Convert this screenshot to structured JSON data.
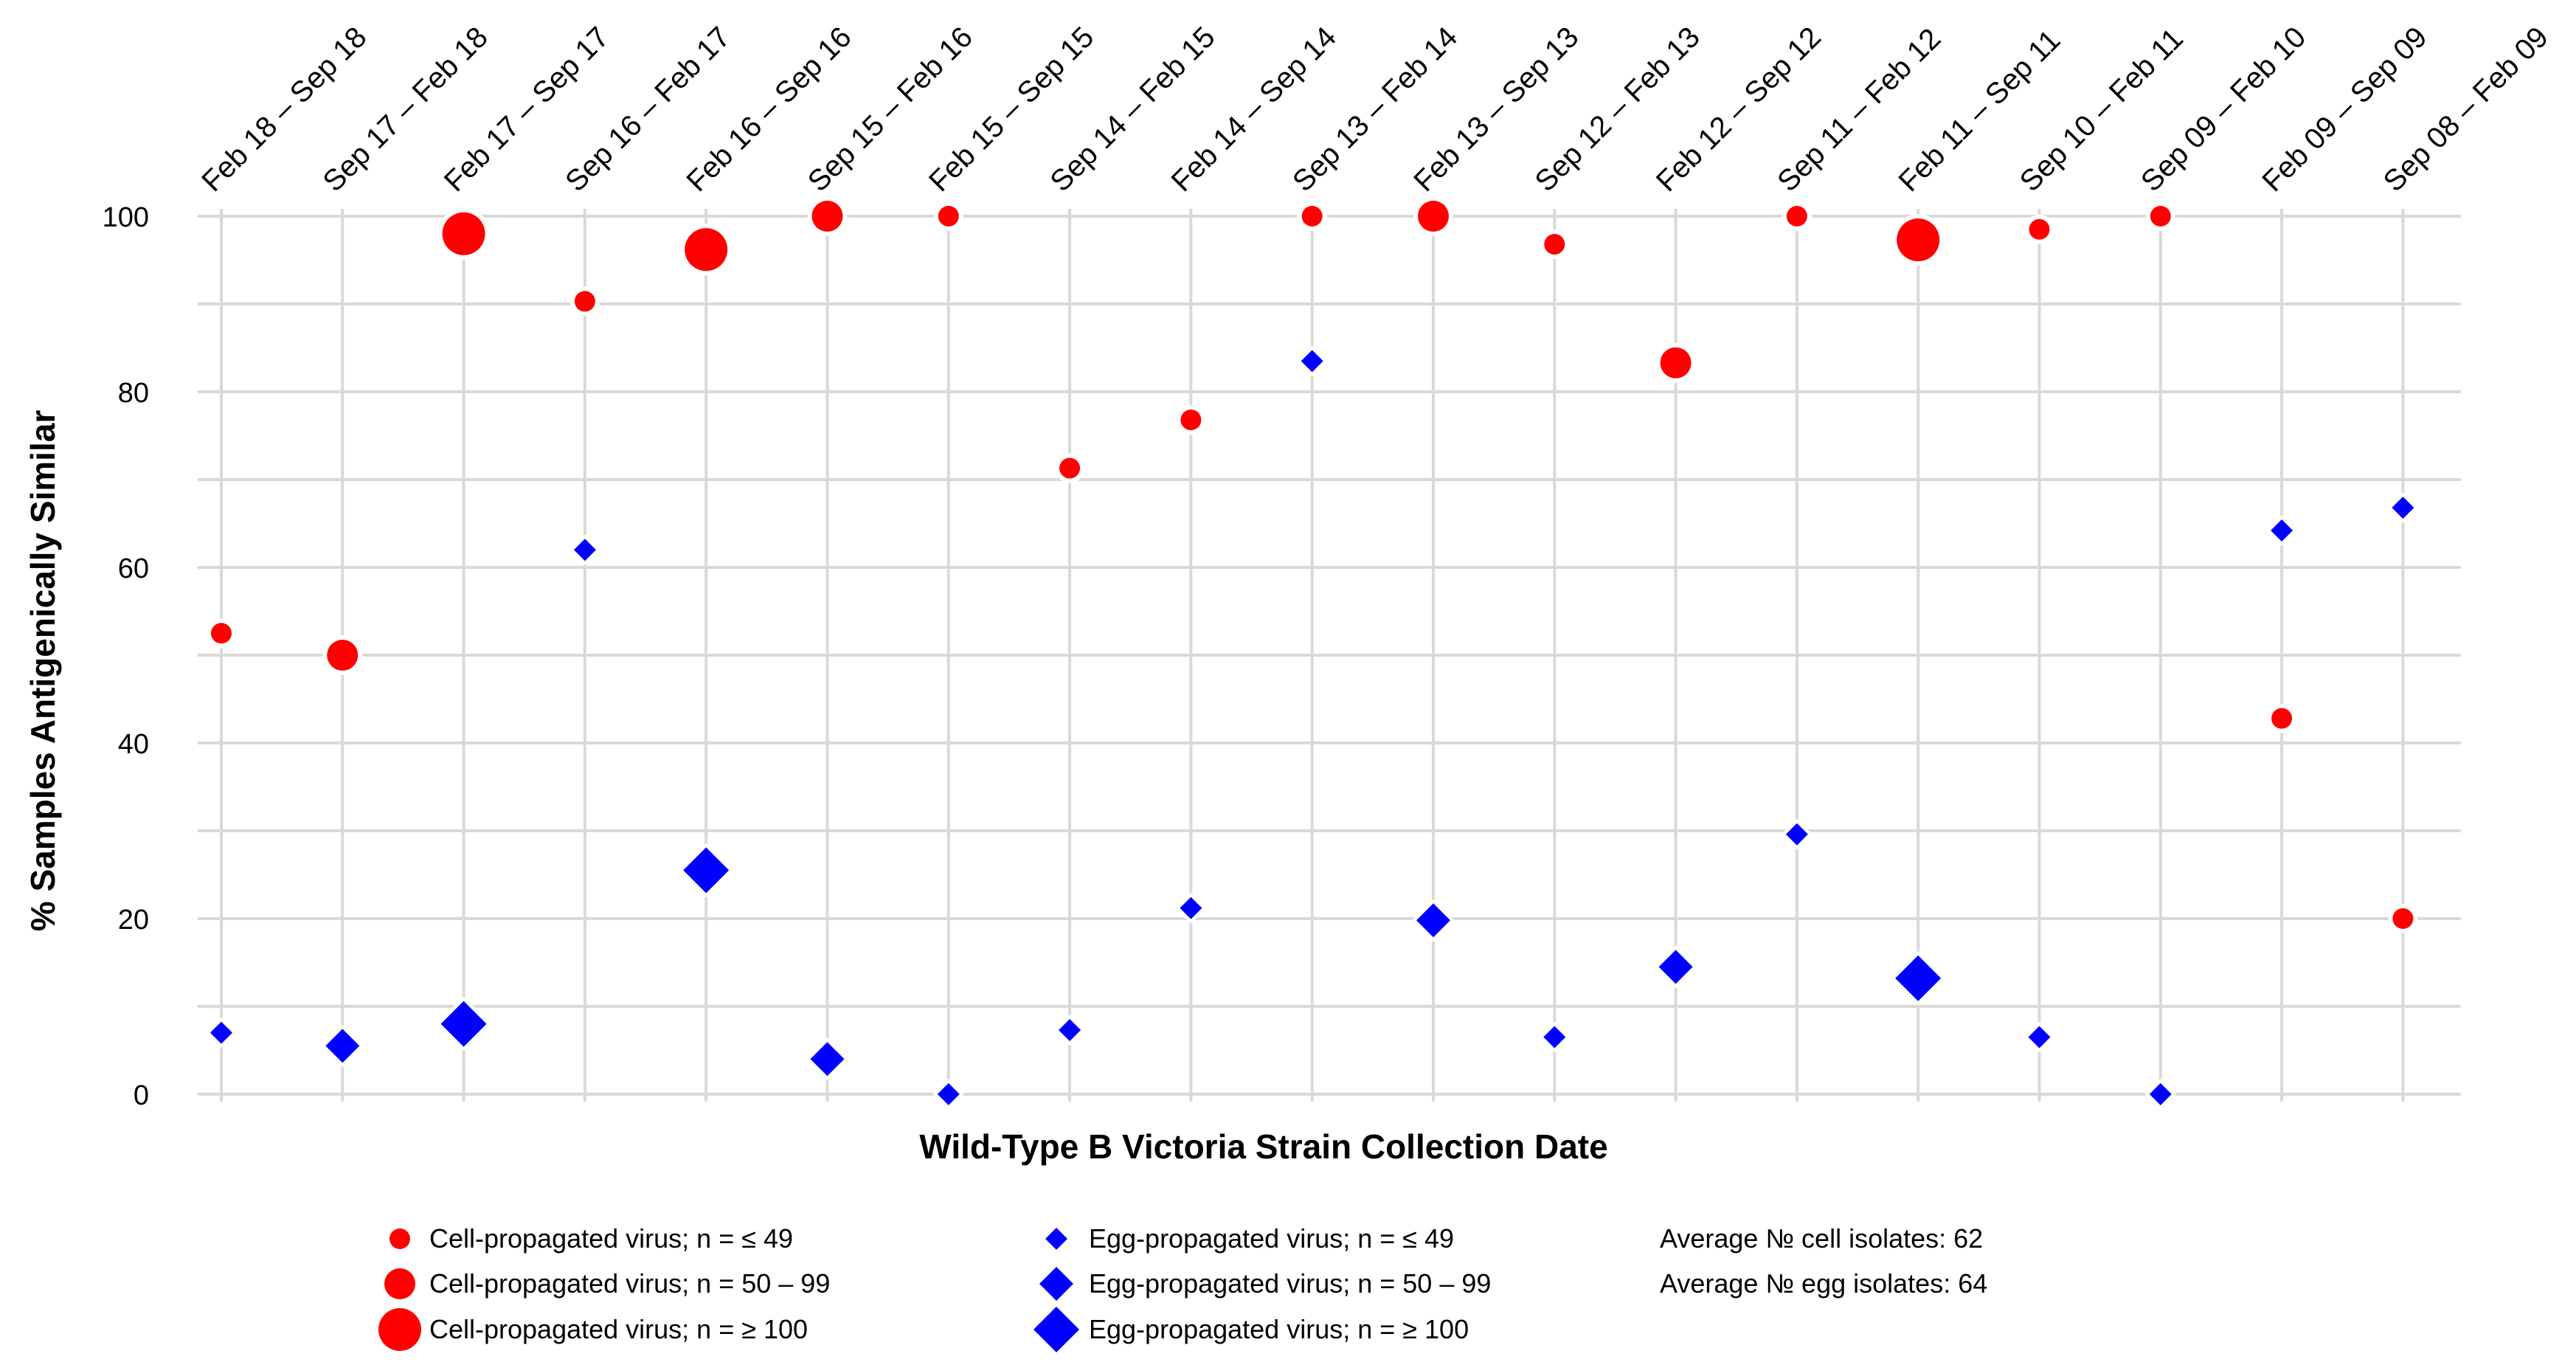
{
  "chart_data": {
    "type": "scatter",
    "title": "",
    "xlabel": "Wild-Type B Victoria Strain Collection Date",
    "ylabel": "% Samples Antigenically Similar",
    "ylim": [
      0,
      100
    ],
    "yticks": [
      0,
      20,
      40,
      60,
      80,
      100
    ],
    "grid": true,
    "categories": [
      "Feb 18 – Sep 18",
      "Sep 17 – Feb 18",
      "Feb 17 – Sep 17",
      "Sep 16 – Feb 17",
      "Feb 16 – Sep 16",
      "Sep 15 – Feb 16",
      "Feb 15 – Sep 15",
      "Sep 14 – Feb 15",
      "Feb 14 – Sep 14",
      "Sep 13 – Feb 14",
      "Feb 13 – Sep 13",
      "Sep 12 – Feb 13",
      "Feb 12 – Sep 12",
      "Sep 11 – Feb 12",
      "Feb 11 – Sep 11",
      "Sep 10 – Feb 11",
      "Sep 09 – Feb 10",
      "Feb 09 – Sep 09",
      "Sep 08 – Feb 09"
    ],
    "series": [
      {
        "name": "Cell-propagated virus",
        "color": "#ff0000",
        "marker": "circle",
        "values": [
          52.5,
          50,
          98,
          90.3,
          96.2,
          100,
          100,
          71.3,
          76.8,
          100,
          100,
          96.8,
          83.3,
          100,
          97.3,
          98.5,
          100,
          42.8,
          20
        ],
        "size_class": [
          "small",
          "medium",
          "large",
          "small",
          "large",
          "medium",
          "small",
          "small",
          "small",
          "small",
          "medium",
          "small",
          "medium",
          "small",
          "large",
          "small",
          "small",
          "small",
          "small"
        ]
      },
      {
        "name": "Egg-propagated virus",
        "color": "#0000ff",
        "marker": "diamond",
        "values": [
          7,
          5.5,
          8,
          62,
          25.5,
          4,
          0,
          7.3,
          21.2,
          83.5,
          19.8,
          6.5,
          14.5,
          29.6,
          13.2,
          6.5,
          0,
          64.2,
          66.8
        ],
        "size_class": [
          "small",
          "medium",
          "large",
          "small",
          "large",
          "medium",
          "small",
          "small",
          "small",
          "small",
          "medium",
          "small",
          "medium",
          "small",
          "large",
          "small",
          "small",
          "small",
          "small"
        ]
      }
    ],
    "legend_placement": "bottom",
    "legend": {
      "cell": [
        "Cell-propagated virus; n = ≤ 49",
        "Cell-propagated virus; n = 50 – 99",
        "Cell-propagated virus; n = ≥ 100"
      ],
      "egg": [
        "Egg-propagated virus; n = ≤ 49",
        "Egg-propagated virus; n = 50 – 99",
        "Egg-propagated virus; n = ≥ 100"
      ],
      "notes": [
        "Average № cell isolates: 62",
        "Average № egg isolates: 64"
      ]
    }
  }
}
